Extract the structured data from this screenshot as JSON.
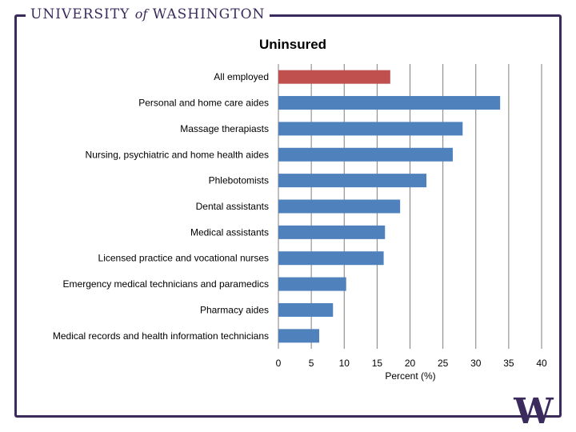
{
  "header": {
    "university": "UNIVERSITY",
    "of": "of",
    "washington": "WASHINGTON",
    "logo_letter": "W"
  },
  "colors": {
    "brand": "#3b2a5c",
    "bar": "#4f81bd",
    "highlight_bar": "#c0504d",
    "grid": "#7f7f7f"
  },
  "chart_data": {
    "type": "bar",
    "orientation": "horizontal",
    "title": "Uninsured",
    "xlabel": "Percent (%)",
    "ylabel": "",
    "xlim": [
      0,
      40
    ],
    "xticks": [
      0,
      5,
      10,
      15,
      20,
      25,
      30,
      35,
      40
    ],
    "grid": true,
    "categories": [
      "All employed",
      "Personal and home care aides",
      "Massage therapiasts",
      "Nursing, psychiatric and home health aides",
      "Phlebotomists",
      "Dental assistants",
      "Medical assistants",
      "Licensed practice and vocational nurses",
      "Emergency medical technicians and paramedics",
      "Pharmacy aides",
      "Medical records and health information technicians"
    ],
    "values": [
      17.0,
      33.7,
      28.0,
      26.5,
      22.5,
      18.5,
      16.2,
      16.0,
      10.3,
      8.3,
      6.2
    ],
    "highlight_index": 0
  }
}
